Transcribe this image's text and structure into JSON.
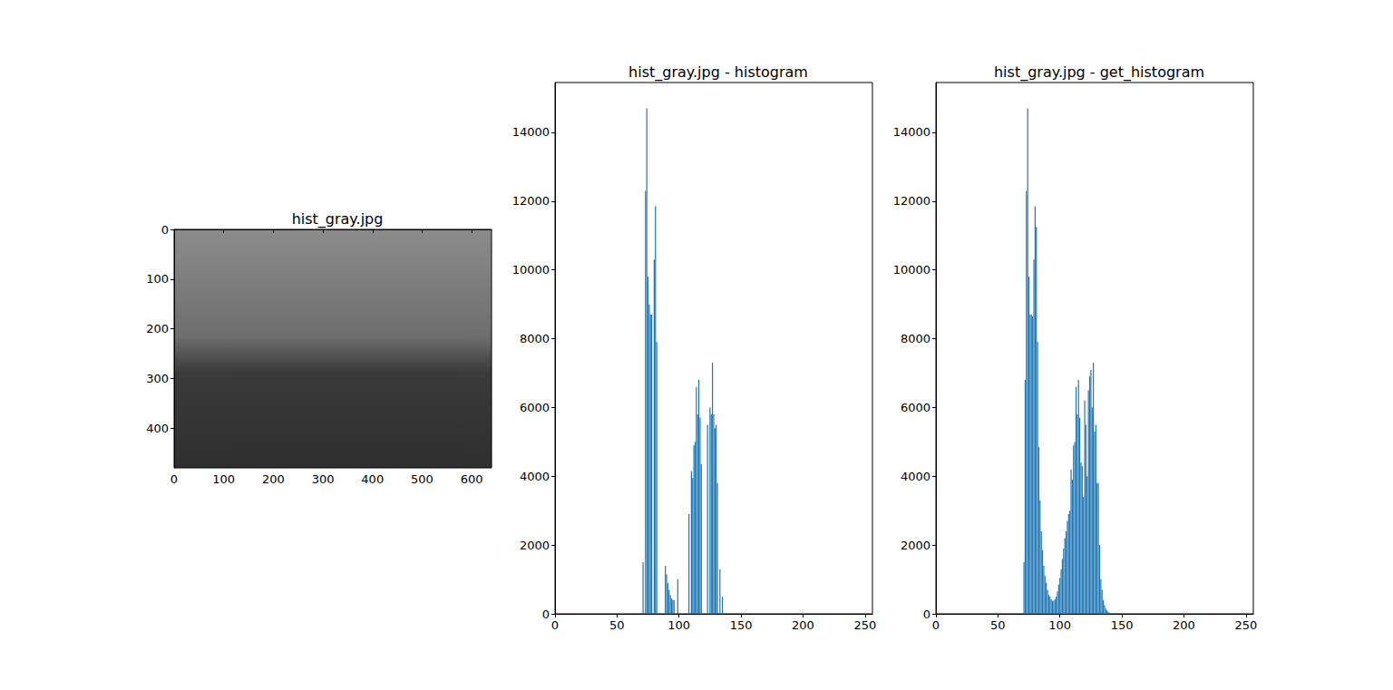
{
  "chart_data": [
    {
      "type": "image",
      "title": "hist_gray.jpg",
      "xlim": [
        0,
        640
      ],
      "ylim": [
        480,
        0
      ],
      "xticks": [
        0,
        100,
        200,
        300,
        400,
        500,
        600
      ],
      "yticks": [
        0,
        100,
        200,
        300,
        400
      ]
    },
    {
      "type": "bar",
      "title": "hist_gray.jpg - histogram",
      "color": "#1f77b4",
      "x": [
        71,
        73,
        74,
        75,
        76,
        77,
        78,
        80,
        81,
        82,
        89,
        90,
        91,
        92,
        93,
        94,
        95,
        96,
        99,
        108,
        110,
        111,
        112,
        113,
        114,
        115,
        116,
        117,
        118,
        123,
        125,
        126,
        127,
        128,
        129,
        130,
        131,
        133,
        135
      ],
      "values": [
        1500,
        12300,
        14700,
        9800,
        9000,
        8700,
        8700,
        10300,
        11850,
        7900,
        1400,
        1150,
        900,
        700,
        550,
        450,
        400,
        400,
        1000,
        2900,
        4150,
        3950,
        4900,
        5000,
        6600,
        5800,
        6800,
        5700,
        4350,
        5500,
        6000,
        5800,
        7300,
        5800,
        5400,
        5500,
        3800,
        1300,
        500
      ],
      "xlim": [
        0,
        256
      ],
      "ylim": [
        0,
        15450
      ],
      "xticks": [
        0,
        50,
        100,
        150,
        200,
        250
      ],
      "yticks": [
        0,
        2000,
        4000,
        6000,
        8000,
        10000,
        12000,
        14000
      ]
    },
    {
      "type": "bar",
      "title": "hist_gray.jpg - get_histogram",
      "color": "#1f77b4",
      "x": [
        71,
        72,
        73,
        74,
        75,
        76,
        77,
        78,
        79,
        80,
        81,
        82,
        83,
        84,
        85,
        86,
        87,
        88,
        89,
        90,
        91,
        92,
        93,
        94,
        95,
        96,
        97,
        98,
        99,
        100,
        101,
        102,
        103,
        104,
        105,
        106,
        107,
        108,
        109,
        110,
        111,
        112,
        113,
        114,
        115,
        116,
        117,
        118,
        119,
        120,
        121,
        122,
        123,
        124,
        125,
        126,
        127,
        128,
        129,
        130,
        131,
        132,
        133,
        134,
        135,
        136,
        137,
        138,
        139,
        140,
        141
      ],
      "values": [
        1500,
        6800,
        12300,
        14700,
        9800,
        8700,
        8700,
        8650,
        10300,
        11850,
        11250,
        7900,
        4850,
        3300,
        2400,
        1850,
        1400,
        1100,
        900,
        700,
        550,
        500,
        420,
        380,
        380,
        420,
        500,
        650,
        850,
        1050,
        1300,
        1600,
        1900,
        2200,
        2400,
        2700,
        2900,
        3000,
        4200,
        3900,
        4900,
        5000,
        6600,
        5800,
        6800,
        5700,
        4400,
        4300,
        3400,
        6200,
        5500,
        4000,
        6500,
        6900,
        7100,
        6000,
        7300,
        5300,
        5500,
        3800,
        3800,
        2000,
        1000,
        700,
        400,
        250,
        150,
        100,
        60,
        30,
        20
      ],
      "xlim": [
        0,
        256
      ],
      "ylim": [
        0,
        15450
      ],
      "xticks": [
        0,
        50,
        100,
        150,
        200,
        250
      ],
      "yticks": [
        0,
        2000,
        4000,
        6000,
        8000,
        10000,
        12000,
        14000
      ]
    }
  ]
}
